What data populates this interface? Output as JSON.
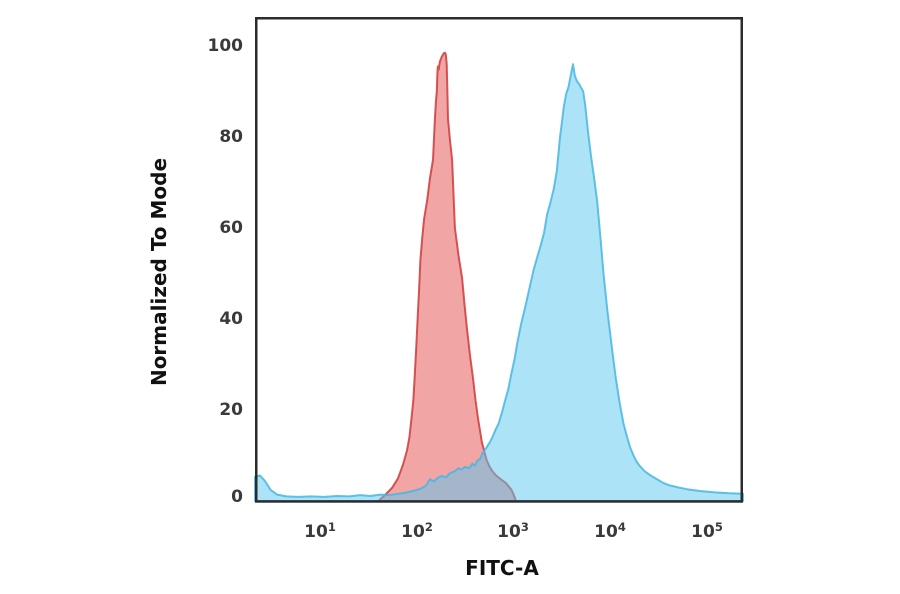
{
  "figure": {
    "background": "#ffffff",
    "frame_color": "#2b2b2b",
    "tick_color": "#3a3a3a"
  },
  "chart_data": {
    "type": "area",
    "subtype": "flow-cytometry-overlaid-histograms",
    "title": "",
    "xlabel": "FITC-A",
    "ylabel": "Normalized To Mode",
    "x_scale": "log",
    "grid": false,
    "legend": null,
    "axes": {
      "x_min": 2.13,
      "x_max": 235000,
      "y_min": 0,
      "y_max": 100
    },
    "y_ticks": [
      "100",
      "80",
      "60",
      "40",
      "20",
      "0"
    ],
    "x_ticks": [
      {
        "base": "10",
        "exp": "1"
      },
      {
        "base": "10",
        "exp": "2"
      },
      {
        "base": "10",
        "exp": "3"
      },
      {
        "base": "10",
        "exp": "4"
      },
      {
        "base": "10",
        "exp": "5"
      }
    ],
    "series": [
      {
        "name": "red-histogram",
        "fill": "#e34b4b",
        "fill_opacity": 0.5,
        "stroke": "#cf3a3a",
        "stroke_opacity": 0.85,
        "peak_x": 196,
        "peak_y": 98.5,
        "points": [
          [
            40,
            0
          ],
          [
            48,
            1.5
          ],
          [
            56,
            3
          ],
          [
            64,
            5
          ],
          [
            72,
            8
          ],
          [
            79,
            11
          ],
          [
            84,
            14
          ],
          [
            88,
            18
          ],
          [
            92,
            22
          ],
          [
            95,
            27
          ],
          [
            99,
            34
          ],
          [
            102,
            40
          ],
          [
            106,
            47
          ],
          [
            109,
            53
          ],
          [
            114,
            58
          ],
          [
            119,
            62
          ],
          [
            128,
            66
          ],
          [
            137,
            71
          ],
          [
            147,
            75
          ],
          [
            154,
            84
          ],
          [
            158,
            88
          ],
          [
            161,
            90
          ],
          [
            163,
            93.5
          ],
          [
            165,
            95.5
          ],
          [
            168,
            94.8
          ],
          [
            173,
            96.5
          ],
          [
            181,
            97.6
          ],
          [
            190,
            98.4
          ],
          [
            196,
            98.5
          ],
          [
            200,
            98
          ],
          [
            204,
            96
          ],
          [
            207,
            91
          ],
          [
            210,
            84
          ],
          [
            220,
            79.5
          ],
          [
            232,
            75
          ],
          [
            240,
            67
          ],
          [
            248,
            60
          ],
          [
            270,
            54
          ],
          [
            294,
            49
          ],
          [
            312,
            43
          ],
          [
            330,
            38
          ],
          [
            355,
            32
          ],
          [
            381,
            27
          ],
          [
            405,
            22
          ],
          [
            430,
            18
          ],
          [
            450,
            15.5
          ],
          [
            470,
            13
          ],
          [
            500,
            10.8
          ],
          [
            527,
            9
          ],
          [
            565,
            7.6
          ],
          [
            606,
            6.5
          ],
          [
            660,
            5.6
          ],
          [
            716,
            5
          ],
          [
            830,
            4
          ],
          [
            950,
            2.5
          ],
          [
            1010,
            1.2
          ],
          [
            1060,
            0
          ]
        ]
      },
      {
        "name": "blue-histogram",
        "fill": "#59c8ef",
        "fill_opacity": 0.5,
        "stroke": "#46b6e2",
        "stroke_opacity": 0.85,
        "peak_x": 4120,
        "peak_y": 96,
        "points": [
          [
            2.13,
            5.3
          ],
          [
            2.4,
            5.6
          ],
          [
            2.7,
            4.4
          ],
          [
            3.1,
            2.4
          ],
          [
            3.6,
            1.4
          ],
          [
            4.5,
            1.0
          ],
          [
            6,
            0.9
          ],
          [
            8,
            1.0
          ],
          [
            11,
            0.9
          ],
          [
            15,
            1.1
          ],
          [
            20,
            1.0
          ],
          [
            26,
            1.3
          ],
          [
            33,
            1.1
          ],
          [
            42,
            1.4
          ],
          [
            52,
            1.3
          ],
          [
            65,
            1.6
          ],
          [
            80,
            1.9
          ],
          [
            95,
            2.3
          ],
          [
            110,
            2.7
          ],
          [
            125,
            3.4
          ],
          [
            137,
            4.8
          ],
          [
            150,
            4.3
          ],
          [
            165,
            5.1
          ],
          [
            180,
            5.5
          ],
          [
            200,
            5.2
          ],
          [
            220,
            6.1
          ],
          [
            245,
            6.5
          ],
          [
            270,
            7.2
          ],
          [
            290,
            6.9
          ],
          [
            316,
            7.5
          ],
          [
            350,
            7.2
          ],
          [
            375,
            8.2
          ],
          [
            400,
            7.8
          ],
          [
            420,
            8.8
          ],
          [
            450,
            9.2
          ],
          [
            480,
            10.6
          ],
          [
            520,
            11.6
          ],
          [
            571,
            13
          ],
          [
            610,
            14.2
          ],
          [
            650,
            15.6
          ],
          [
            700,
            17
          ],
          [
            760,
            19.5
          ],
          [
            817,
            22
          ],
          [
            880,
            24.5
          ],
          [
            950,
            28
          ],
          [
            1020,
            31
          ],
          [
            1100,
            35
          ],
          [
            1200,
            39
          ],
          [
            1318,
            42.5
          ],
          [
            1450,
            46.5
          ],
          [
            1600,
            50.5
          ],
          [
            1750,
            53.5
          ],
          [
            1900,
            56
          ],
          [
            2070,
            59
          ],
          [
            2224,
            63
          ],
          [
            2400,
            65.5
          ],
          [
            2600,
            68.5
          ],
          [
            2800,
            72.5
          ],
          [
            3020,
            80
          ],
          [
            3150,
            83
          ],
          [
            3300,
            86.5
          ],
          [
            3500,
            89.5
          ],
          [
            3700,
            91
          ],
          [
            3900,
            93.5
          ],
          [
            4120,
            96
          ],
          [
            4300,
            93.5
          ],
          [
            4500,
            92.3
          ],
          [
            4800,
            91.5
          ],
          [
            5248,
            90
          ],
          [
            5500,
            87
          ],
          [
            5900,
            81
          ],
          [
            6300,
            76
          ],
          [
            6800,
            71
          ],
          [
            7300,
            66
          ],
          [
            7900,
            58
          ],
          [
            8500,
            50
          ],
          [
            9300,
            42
          ],
          [
            10420,
            33.5
          ],
          [
            11400,
            27
          ],
          [
            12500,
            21.5
          ],
          [
            13700,
            17
          ],
          [
            15000,
            13.8
          ],
          [
            16000,
            11.8
          ],
          [
            17180,
            10.2
          ],
          [
            18500,
            8.8
          ],
          [
            20000,
            7.8
          ],
          [
            22500,
            6.6
          ],
          [
            25000,
            5.9
          ],
          [
            28000,
            5.2
          ],
          [
            30400,
            4.8
          ],
          [
            35000,
            4
          ],
          [
            40000,
            3.5
          ],
          [
            50000,
            3
          ],
          [
            62000,
            2.6
          ],
          [
            84500,
            2.2
          ],
          [
            120000,
            1.9
          ],
          [
            170000,
            1.7
          ],
          [
            235000,
            1.6
          ]
        ]
      }
    ]
  }
}
